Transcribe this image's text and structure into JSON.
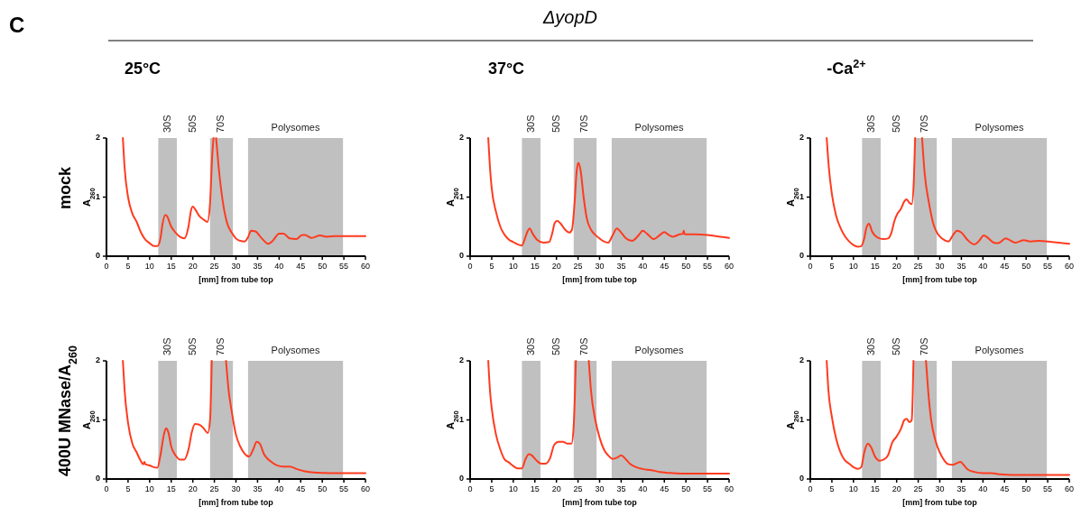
{
  "chart_data": [
    {
      "type": "line",
      "title": "25°C",
      "xlabel": "[mm] from tube top",
      "ylabel": "A$_{260}$",
      "xlim": [
        0,
        60
      ],
      "xticks": [
        0,
        5,
        10,
        15,
        20,
        25,
        30,
        35,
        40,
        45,
        50,
        55,
        60
      ],
      "ylim": [
        0,
        2
      ],
      "yticks": [
        0,
        1,
        2
      ],
      "color": "#ff3b1f",
      "bands": [
        {
          "axis": "x",
          "from": 12,
          "to": 16.3,
          "label": "30S",
          "color": "#c0c0c0"
        },
        {
          "axis": "x",
          "from": 24,
          "to": 29.3,
          "label": "70S",
          "color": "#c0c0c0"
        },
        {
          "axis": "x",
          "from": 32.8,
          "to": 54.8,
          "label": "Polysomes",
          "color": "#c0c0c0"
        }
      ],
      "annotations": [
        "50S",
        "C",
        "ΔyopD",
        "mock"
      ],
      "x": [
        3.8,
        4.2,
        5,
        6,
        7,
        8,
        9,
        10,
        11,
        11.8,
        12.5,
        13,
        13.6,
        14,
        15,
        16,
        17,
        18,
        19,
        19.6,
        20,
        20.5,
        21.5,
        22.5,
        23.4,
        24,
        24.5,
        24.8,
        25,
        25.4,
        26,
        27,
        28,
        29,
        30,
        31,
        32,
        32.8,
        33.5,
        34.5,
        36,
        37.5,
        38.5,
        40,
        41,
        42.5,
        44,
        45.3,
        46,
        47.5,
        49.5,
        51,
        53,
        56,
        60
      ],
      "values": [
        2,
        1.5,
        1.0,
        0.72,
        0.58,
        0.4,
        0.28,
        0.22,
        0.17,
        0.17,
        0.3,
        0.55,
        0.7,
        0.68,
        0.5,
        0.4,
        0.33,
        0.3,
        0.5,
        0.78,
        0.84,
        0.8,
        0.68,
        0.62,
        0.58,
        0.9,
        1.7,
        2,
        null,
        2,
        1.5,
        0.9,
        0.55,
        0.4,
        0.3,
        0.26,
        0.25,
        0.32,
        0.43,
        0.42,
        0.3,
        0.21,
        0.26,
        0.38,
        0.38,
        0.3,
        0.29,
        0.36,
        0.36,
        0.31,
        0.35,
        0.33,
        0.34,
        0.34,
        0.34
      ]
    },
    {
      "type": "line",
      "title": "37°C",
      "xlabel": "[mm] from tube top",
      "ylabel": "A$_{260}$",
      "xlim": [
        0,
        60
      ],
      "xticks": [
        0,
        5,
        10,
        15,
        20,
        25,
        30,
        35,
        40,
        45,
        50,
        55,
        60
      ],
      "ylim": [
        0,
        2
      ],
      "yticks": [
        0,
        1,
        2
      ],
      "color": "#ff3b1f",
      "bands": [
        {
          "axis": "x",
          "from": 12,
          "to": 16.3,
          "label": "30S",
          "color": "#c0c0c0"
        },
        {
          "axis": "x",
          "from": 24,
          "to": 29.3,
          "label": "70S",
          "color": "#c0c0c0"
        },
        {
          "axis": "x",
          "from": 32.8,
          "to": 54.8,
          "label": "Polysomes",
          "color": "#c0c0c0"
        }
      ],
      "annotations": [
        "50S"
      ],
      "x": [
        4.2,
        4.6,
        5,
        6,
        7,
        8,
        9,
        10,
        11,
        12,
        12.7,
        13.3,
        13.8,
        14.5,
        15.5,
        17,
        18.3,
        19,
        19.6,
        20.2,
        21,
        22,
        23,
        23.6,
        24.2,
        24.7,
        25.1,
        25.6,
        26.3,
        27,
        28,
        29,
        30,
        31,
        32,
        33,
        34,
        35,
        36,
        37.5,
        39,
        40,
        41,
        42.5,
        44,
        45,
        46,
        47,
        48.5,
        49.3,
        49.5,
        49.7,
        52,
        55,
        58,
        60
      ],
      "values": [
        2,
        1.5,
        1.15,
        0.75,
        0.5,
        0.36,
        0.28,
        0.24,
        0.2,
        0.18,
        0.3,
        0.42,
        0.47,
        0.38,
        0.28,
        0.23,
        0.24,
        0.38,
        0.56,
        0.6,
        0.55,
        0.45,
        0.4,
        0.45,
        0.9,
        1.45,
        1.58,
        1.45,
        1.0,
        0.65,
        0.45,
        0.36,
        0.3,
        0.25,
        0.23,
        0.35,
        0.47,
        0.4,
        0.31,
        0.26,
        0.35,
        0.43,
        0.38,
        0.29,
        0.36,
        0.41,
        0.36,
        0.33,
        0.37,
        0.38,
        0.43,
        0.37,
        0.37,
        0.36,
        0.33,
        0.31
      ]
    },
    {
      "type": "line",
      "title": "-Ca$^{2+}$",
      "xlabel": "[mm] from tube top",
      "ylabel": "A$_{260}$",
      "xlim": [
        0,
        60
      ],
      "xticks": [
        0,
        5,
        10,
        15,
        20,
        25,
        30,
        35,
        40,
        45,
        50,
        55,
        60
      ],
      "ylim": [
        0,
        2
      ],
      "yticks": [
        0,
        1,
        2
      ],
      "color": "#ff3b1f",
      "bands": [
        {
          "axis": "x",
          "from": 12,
          "to": 16.3,
          "label": "30S",
          "color": "#c0c0c0"
        },
        {
          "axis": "x",
          "from": 24,
          "to": 29.3,
          "label": "70S",
          "color": "#c0c0c0"
        },
        {
          "axis": "x",
          "from": 32.8,
          "to": 54.8,
          "label": "Polysomes",
          "color": "#c0c0c0"
        }
      ],
      "annotations": [
        "50S"
      ],
      "x": [
        3.8,
        4.3,
        5,
        6,
        7,
        8,
        9,
        10,
        11,
        11.8,
        12.5,
        13,
        13.6,
        14.3,
        15.5,
        17,
        18,
        18.8,
        19.5,
        20.2,
        21,
        21.8,
        22.3,
        23,
        23.5,
        24,
        24.3,
        25,
        25.9,
        26.5,
        27.5,
        28.5,
        29.5,
        30.5,
        32,
        33,
        34,
        35,
        36.5,
        38,
        39,
        40.2,
        41,
        42.5,
        43.5,
        45.3,
        46,
        47.5,
        49.5,
        51,
        53,
        56,
        60
      ],
      "values": [
        2,
        1.5,
        1.05,
        0.68,
        0.48,
        0.34,
        0.25,
        0.19,
        0.16,
        0.17,
        0.3,
        0.48,
        0.55,
        0.42,
        0.32,
        0.29,
        0.3,
        0.4,
        0.6,
        0.72,
        0.8,
        0.93,
        0.96,
        0.9,
        0.88,
        1.3,
        2,
        null,
        2,
        1.4,
        0.9,
        0.55,
        0.38,
        0.3,
        0.25,
        0.35,
        0.43,
        0.4,
        0.27,
        0.2,
        0.25,
        0.35,
        0.32,
        0.23,
        0.22,
        0.3,
        0.28,
        0.23,
        0.27,
        0.25,
        0.26,
        0.24,
        0.21
      ]
    },
    {
      "type": "line",
      "xlabel": "[mm] from tube top",
      "ylabel": "A$_{260}$",
      "xlim": [
        0,
        60
      ],
      "xticks": [
        0,
        5,
        10,
        15,
        20,
        25,
        30,
        35,
        40,
        45,
        50,
        55,
        60
      ],
      "ylim": [
        0,
        2
      ],
      "yticks": [
        0,
        1,
        2
      ],
      "color": "#ff3b1f",
      "bands": [
        {
          "axis": "x",
          "from": 12,
          "to": 16.3,
          "label": "30S",
          "color": "#c0c0c0"
        },
        {
          "axis": "x",
          "from": 24,
          "to": 29.3,
          "label": "70S",
          "color": "#c0c0c0"
        },
        {
          "axis": "x",
          "from": 32.8,
          "to": 54.8,
          "label": "Polysomes",
          "color": "#c0c0c0"
        }
      ],
      "annotations": [
        "50S",
        "400U MNase/A$_{260}$"
      ],
      "x": [
        3.8,
        4.2,
        5,
        6,
        7,
        8,
        8.5,
        8.8,
        9,
        10,
        11,
        11.8,
        12.5,
        13.3,
        13.8,
        14.3,
        15,
        16,
        17,
        18,
        19,
        19.8,
        20.5,
        21.5,
        22.5,
        23.5,
        24,
        24.4,
        26,
        27.7,
        28.3,
        29,
        30,
        31,
        32,
        33,
        34,
        34.8,
        35.5,
        36.5,
        38,
        39.5,
        41,
        42.5,
        44,
        46,
        48,
        52,
        56,
        60
      ],
      "values": [
        2,
        1.5,
        0.95,
        0.6,
        0.45,
        0.3,
        0.25,
        0.29,
        0.25,
        0.23,
        0.2,
        0.19,
        0.4,
        0.75,
        0.86,
        0.8,
        0.55,
        0.4,
        0.33,
        0.33,
        0.5,
        0.8,
        0.93,
        0.92,
        0.86,
        0.78,
        1.0,
        2,
        null,
        2,
        1.5,
        1.15,
        0.75,
        0.55,
        0.43,
        0.38,
        0.5,
        0.63,
        0.6,
        0.42,
        0.3,
        0.23,
        0.21,
        0.21,
        0.17,
        0.13,
        0.11,
        0.1,
        0.1,
        0.1
      ]
    },
    {
      "type": "line",
      "xlabel": "[mm] from tube top",
      "ylabel": "A$_{260}$",
      "xlim": [
        0,
        60
      ],
      "xticks": [
        0,
        5,
        10,
        15,
        20,
        25,
        30,
        35,
        40,
        45,
        50,
        55,
        60
      ],
      "ylim": [
        0,
        2
      ],
      "yticks": [
        0,
        1,
        2
      ],
      "color": "#ff3b1f",
      "bands": [
        {
          "axis": "x",
          "from": 12,
          "to": 16.3,
          "label": "30S",
          "color": "#c0c0c0"
        },
        {
          "axis": "x",
          "from": 24,
          "to": 29.3,
          "label": "70S",
          "color": "#c0c0c0"
        },
        {
          "axis": "x",
          "from": 32.8,
          "to": 54.8,
          "label": "Polysomes",
          "color": "#c0c0c0"
        }
      ],
      "annotations": [
        "50S"
      ],
      "x": [
        4.2,
        4.6,
        5,
        6,
        7,
        8,
        9,
        10,
        11,
        12,
        12.8,
        13.6,
        14.3,
        15.3,
        16.5,
        17.5,
        18.5,
        19.5,
        20.5,
        21.5,
        22.5,
        23.5,
        24,
        24.5,
        26,
        27.5,
        28,
        29,
        30,
        31,
        32,
        33,
        34,
        35,
        36,
        37,
        38.5,
        40,
        42,
        44,
        47,
        50,
        55,
        60
      ],
      "values": [
        2,
        1.5,
        1.2,
        0.75,
        0.5,
        0.33,
        0.28,
        0.22,
        0.18,
        0.18,
        0.33,
        0.42,
        0.4,
        0.32,
        0.26,
        0.26,
        0.35,
        0.58,
        0.63,
        0.63,
        0.6,
        0.6,
        0.9,
        2,
        null,
        2,
        1.5,
        1.0,
        0.7,
        0.5,
        0.4,
        0.34,
        0.36,
        0.4,
        0.34,
        0.26,
        0.2,
        0.17,
        0.15,
        0.12,
        0.1,
        0.09,
        0.09,
        0.09
      ]
    },
    {
      "type": "line",
      "xlabel": "[mm] from tube top",
      "ylabel": "A$_{260}$",
      "xlim": [
        0,
        60
      ],
      "xticks": [
        0,
        5,
        10,
        15,
        20,
        25,
        30,
        35,
        40,
        45,
        50,
        55,
        60
      ],
      "ylim": [
        0,
        2
      ],
      "yticks": [
        0,
        1,
        2
      ],
      "color": "#ff3b1f",
      "bands": [
        {
          "axis": "x",
          "from": 12,
          "to": 16.3,
          "label": "30S",
          "color": "#c0c0c0"
        },
        {
          "axis": "x",
          "from": 24,
          "to": 29.3,
          "label": "70S",
          "color": "#c0c0c0"
        },
        {
          "axis": "x",
          "from": 32.8,
          "to": 54.8,
          "label": "Polysomes",
          "color": "#c0c0c0"
        }
      ],
      "annotations": [
        "50S"
      ],
      "x": [
        3.8,
        4.2,
        5,
        6,
        7,
        8,
        9,
        10,
        11,
        11.8,
        12.5,
        13.3,
        14,
        15,
        16,
        17,
        18,
        19,
        20,
        21,
        21.8,
        22.3,
        23,
        23.5,
        23.9,
        25,
        26.8,
        27.3,
        28,
        29,
        30,
        31,
        32,
        33,
        34,
        34.8,
        35.5,
        36.5,
        38,
        40,
        42,
        44,
        47,
        52,
        60
      ],
      "values": [
        2,
        1.5,
        1.05,
        0.68,
        0.45,
        0.32,
        0.26,
        0.2,
        0.17,
        0.2,
        0.45,
        0.6,
        0.55,
        0.38,
        0.31,
        0.33,
        0.4,
        0.62,
        0.72,
        0.85,
        1.0,
        1.02,
        0.96,
        1.0,
        2,
        null,
        2,
        1.5,
        1.0,
        0.65,
        0.45,
        0.32,
        0.25,
        0.24,
        0.27,
        0.29,
        0.24,
        0.16,
        0.12,
        0.1,
        0.1,
        0.08,
        0.07,
        0.07,
        0.07
      ]
    }
  ]
}
